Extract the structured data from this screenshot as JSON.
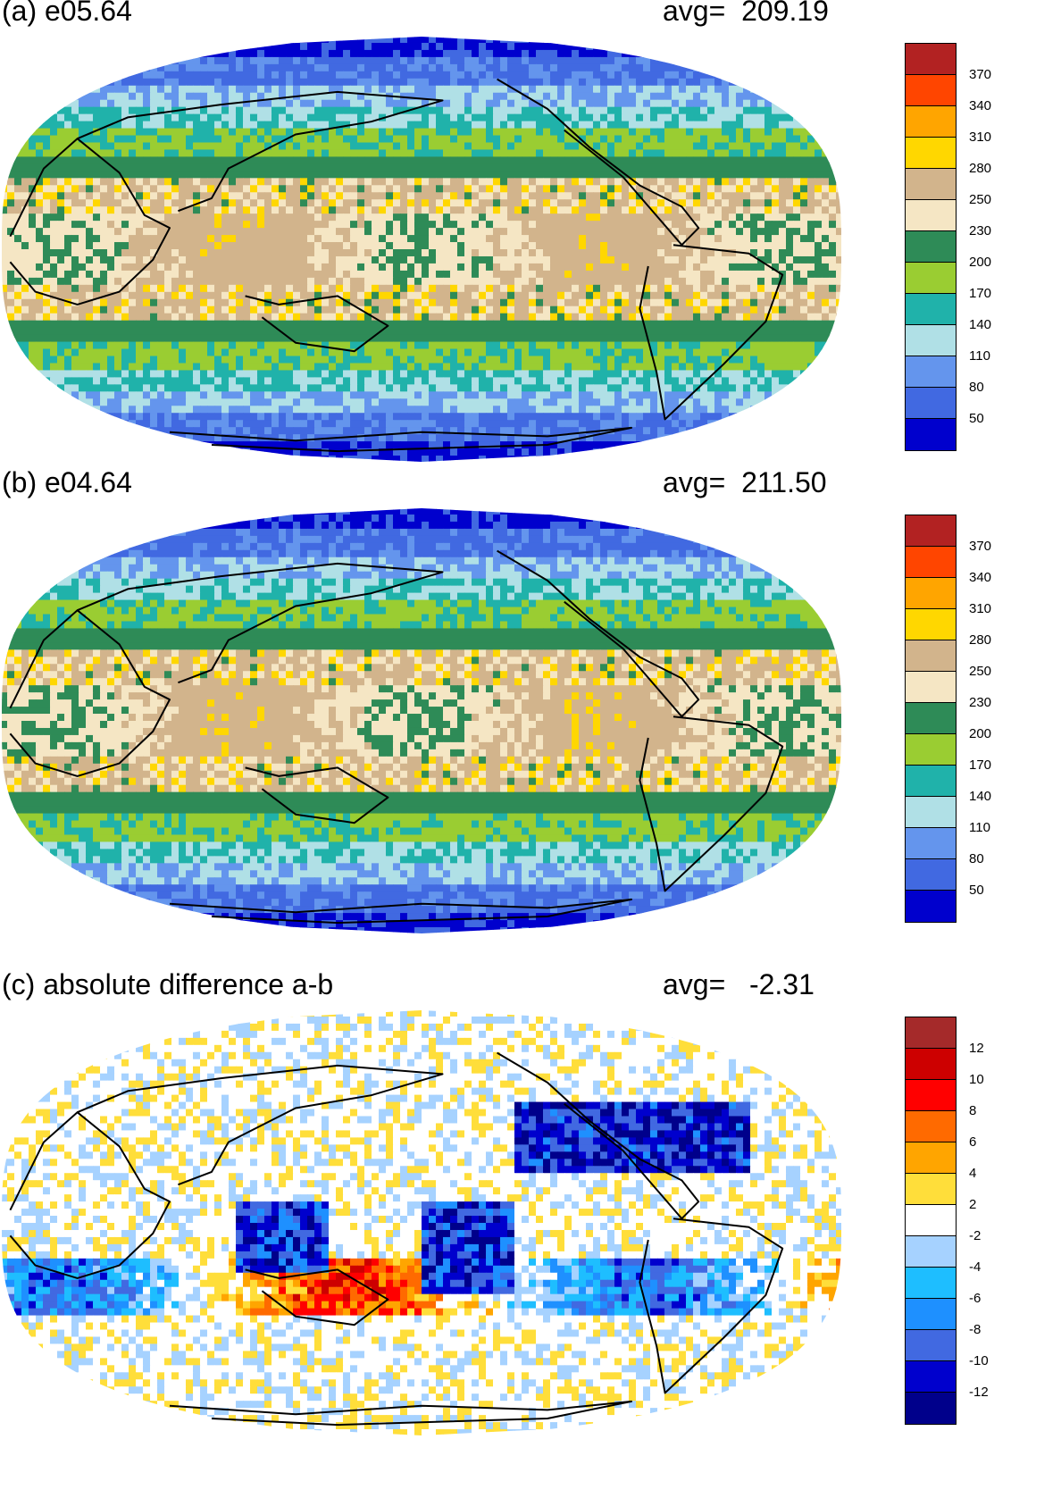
{
  "panels": [
    {
      "id": "a",
      "title": "(a) e05.64",
      "avg_label": "avg=  209.19",
      "field": "mean",
      "levels": [
        "370",
        "340",
        "310",
        "280",
        "250",
        "230",
        "200",
        "170",
        "140",
        "110",
        "80",
        "50"
      ],
      "colors": [
        "#b22222",
        "#ff4500",
        "#ffa500",
        "#ffd700",
        "#d2b48c",
        "#f5e6c4",
        "#2e8b57",
        "#9acd32",
        "#20b2aa",
        "#b0e0e6",
        "#6495ed",
        "#4169e1",
        "#0000cd"
      ]
    },
    {
      "id": "b",
      "title": "(b) e04.64",
      "avg_label": "avg=  211.50",
      "field": "mean",
      "levels": [
        "370",
        "340",
        "310",
        "280",
        "250",
        "230",
        "200",
        "170",
        "140",
        "110",
        "80",
        "50"
      ],
      "colors": [
        "#b22222",
        "#ff4500",
        "#ffa500",
        "#ffd700",
        "#d2b48c",
        "#f5e6c4",
        "#2e8b57",
        "#9acd32",
        "#20b2aa",
        "#b0e0e6",
        "#6495ed",
        "#4169e1",
        "#0000cd"
      ]
    },
    {
      "id": "c",
      "title": "(c) absolute difference a-b",
      "avg_label": "avg=   -2.31",
      "field": "diff",
      "levels": [
        "12",
        "10",
        "8",
        "6",
        "4",
        "2",
        "-2",
        "-4",
        "-6",
        "-8",
        "-10",
        "-12"
      ],
      "colors": [
        "#a52a2a",
        "#cd0000",
        "#ff0000",
        "#ff6a00",
        "#ffa500",
        "#ffde3a",
        "#ffffff",
        "#a6d2ff",
        "#1ebeff",
        "#1e90ff",
        "#4169e1",
        "#0000cd",
        "#00008b"
      ]
    }
  ]
}
